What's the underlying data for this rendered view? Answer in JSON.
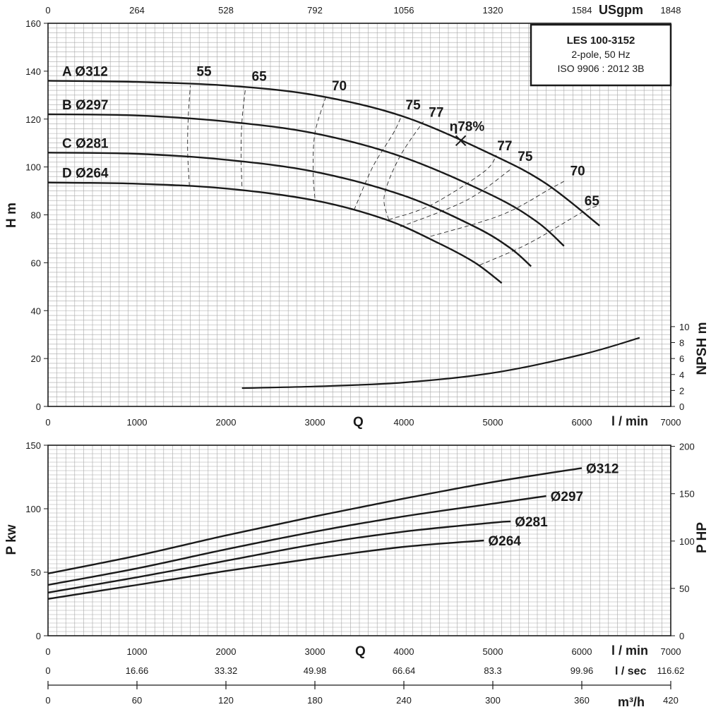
{
  "chart_data": [
    {
      "type": "line",
      "id": "head",
      "title_box": {
        "model": "LES 100-3152",
        "line2": "2-pole, 50 Hz",
        "line3": "ISO 9906 : 2012 3B"
      },
      "x_unit": "l / min",
      "x_symbol": "Q",
      "xlim": [
        0,
        7000
      ],
      "x_ticks": [
        0,
        1000,
        2000,
        3000,
        4000,
        5000,
        6000,
        7000
      ],
      "y_label": "H m",
      "ylim": [
        0,
        160
      ],
      "y_ticks": [
        0,
        20,
        40,
        60,
        80,
        100,
        120,
        140,
        160
      ],
      "y2_label": "NPSH m",
      "y2_ticks": [
        0,
        2,
        4,
        6,
        8,
        10
      ],
      "top_axis_unit": "USgpm",
      "top_ticks": [
        "0",
        "264",
        "528",
        "792",
        "1056",
        "1320",
        "1584",
        "1848"
      ],
      "series": [
        {
          "name": "A Ø312",
          "x": [
            0,
            1000,
            2000,
            3000,
            4000,
            5000,
            5600,
            6200
          ],
          "y": [
            136,
            135.5,
            134,
            130,
            121,
            105,
            93,
            75.5
          ]
        },
        {
          "name": "B Ø297",
          "x": [
            0,
            1000,
            2000,
            3000,
            4000,
            5000,
            5500,
            5800
          ],
          "y": [
            122,
            121.5,
            119,
            114,
            104,
            88,
            77,
            67
          ]
        },
        {
          "name": "C Ø281",
          "x": [
            0,
            1000,
            2000,
            3000,
            4000,
            4800,
            5200,
            5430
          ],
          "y": [
            106,
            105.5,
            103,
            98,
            88,
            75,
            66,
            58.5
          ]
        },
        {
          "name": "D Ø264",
          "x": [
            0,
            1000,
            2000,
            3000,
            3800,
            4400,
            4800,
            5100
          ],
          "y": [
            93.5,
            93,
            91,
            86,
            78,
            68,
            60,
            51.5
          ]
        }
      ],
      "npsh": {
        "x": [
          2180,
          3000,
          4000,
          5000,
          6000,
          6650
        ],
        "y": [
          2.3,
          2.5,
          3,
          4.2,
          6.5,
          8.6
        ]
      },
      "efficiency_lines": [
        {
          "label": "55",
          "points": [
            [
              1590,
              92
            ],
            [
              1570,
              106
            ],
            [
              1575,
              120
            ],
            [
              1600,
              134
            ]
          ]
        },
        {
          "label": "65",
          "points": [
            [
              2180,
              92
            ],
            [
              2170,
              105
            ],
            [
              2180,
              119
            ],
            [
              2220,
              133
            ]
          ]
        },
        {
          "label": "70",
          "points": [
            [
              3000,
              87
            ],
            [
              2980,
              98
            ],
            [
              3000,
              114
            ],
            [
              3120,
              129
            ]
          ]
        },
        {
          "label": "75",
          "points": [
            [
              3440,
              82
            ],
            [
              3650,
              100
            ],
            [
              3880,
              114
            ],
            [
              3970,
              121
            ]
          ]
        },
        {
          "label": "77",
          "points": [
            [
              3830,
              78
            ],
            [
              3780,
              88
            ],
            [
              3950,
              104
            ],
            [
              4220,
              119
            ]
          ]
        },
        {
          "label": "77",
          "points": [
            [
              3830,
              78
            ],
            [
              4300,
              84
            ],
            [
              4900,
              98
            ],
            [
              5040,
              105
            ]
          ]
        },
        {
          "label": "75",
          "points": [
            [
              3960,
              75
            ],
            [
              4700,
              86
            ],
            [
              5200,
              99
            ]
          ]
        },
        {
          "label": "70",
          "points": [
            [
              4300,
              71
            ],
            [
              5100,
              80
            ],
            [
              5650,
              91
            ],
            [
              5800,
              94
            ]
          ]
        },
        {
          "label": "65",
          "points": [
            [
              4850,
              59
            ],
            [
              5400,
              68
            ],
            [
              6000,
              81
            ],
            [
              6200,
              84
            ]
          ]
        }
      ],
      "eff_labels": [
        {
          "text": "55",
          "x": 1670,
          "y": 138
        },
        {
          "text": "65",
          "x": 2290,
          "y": 136
        },
        {
          "text": "70",
          "x": 3190,
          "y": 132
        },
        {
          "text": "75",
          "x": 4020,
          "y": 124
        },
        {
          "text": "77",
          "x": 4280,
          "y": 121
        },
        {
          "text": "77",
          "x": 5050,
          "y": 107
        },
        {
          "text": "75",
          "x": 5280,
          "y": 102.5
        },
        {
          "text": "70",
          "x": 5870,
          "y": 96.5
        },
        {
          "text": "65",
          "x": 6030,
          "y": 84
        }
      ],
      "bep": {
        "label": "η78%",
        "x": 4640,
        "y": 111
      }
    },
    {
      "type": "line",
      "id": "power",
      "x_unit": "l / min",
      "x_symbol": "Q",
      "xlim": [
        0,
        7000
      ],
      "x_ticks": [
        0,
        1000,
        2000,
        3000,
        4000,
        5000,
        6000,
        7000
      ],
      "y_label": "P kw",
      "ylim": [
        0,
        150
      ],
      "y_ticks": [
        0,
        50,
        100,
        150
      ],
      "y2_label": "P HP",
      "y2_ticks": [
        0,
        50,
        100,
        150,
        200
      ],
      "series": [
        {
          "name": "Ø312",
          "x": [
            0,
            1000,
            2000,
            3000,
            4000,
            5000,
            6000
          ],
          "y": [
            49,
            63,
            79,
            94,
            108,
            121,
            132
          ]
        },
        {
          "name": "Ø297",
          "x": [
            0,
            1000,
            2000,
            3000,
            4000,
            5000,
            5600
          ],
          "y": [
            40,
            53,
            68,
            82,
            94,
            104,
            110
          ]
        },
        {
          "name": "Ø281",
          "x": [
            0,
            1000,
            2000,
            3000,
            4000,
            5000,
            5200
          ],
          "y": [
            34,
            46,
            59,
            72,
            82,
            89,
            90
          ]
        },
        {
          "name": "Ø264",
          "x": [
            0,
            1000,
            2000,
            3000,
            4000,
            4900
          ],
          "y": [
            29,
            40,
            51,
            61,
            70,
            75
          ]
        }
      ]
    }
  ],
  "bottom_axes": {
    "lsec_unit": "l / sec",
    "lsec_ticks": [
      "0",
      "16.66",
      "33.32",
      "49.98",
      "66.64",
      "83.3",
      "99.96",
      "116.62"
    ],
    "m3h_unit": "m³/h",
    "m3h_ticks": [
      "0",
      "60",
      "120",
      "180",
      "240",
      "300",
      "360",
      "420"
    ]
  }
}
